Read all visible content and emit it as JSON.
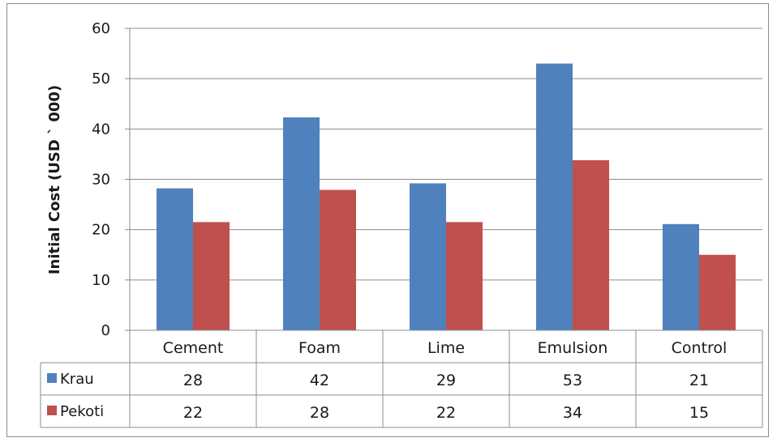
{
  "chart_data": {
    "type": "bar",
    "categories": [
      "Cement",
      "Foam",
      "Lime",
      "Emulsion",
      "Control"
    ],
    "series": [
      {
        "name": "Krau",
        "values": [
          28,
          42,
          29,
          53,
          21
        ],
        "color": "#4f81bd"
      },
      {
        "name": "Pekoti",
        "values": [
          22,
          28,
          22,
          34,
          15
        ],
        "color": "#c0504d"
      }
    ],
    "bar_heights": {
      "Krau": [
        28.2,
        42.3,
        29.2,
        53.0,
        21.1
      ],
      "Pekoti": [
        21.5,
        27.9,
        21.5,
        33.8,
        15.0
      ]
    },
    "title": "",
    "xlabel": "",
    "ylabel": "Initial Cost  (USD ` 000)",
    "ylim": [
      0,
      60
    ],
    "yticks": [
      "0",
      "10",
      "20",
      "30",
      "40",
      "50",
      "60"
    ],
    "grid": true,
    "legend": "data-table",
    "data_table": true
  }
}
